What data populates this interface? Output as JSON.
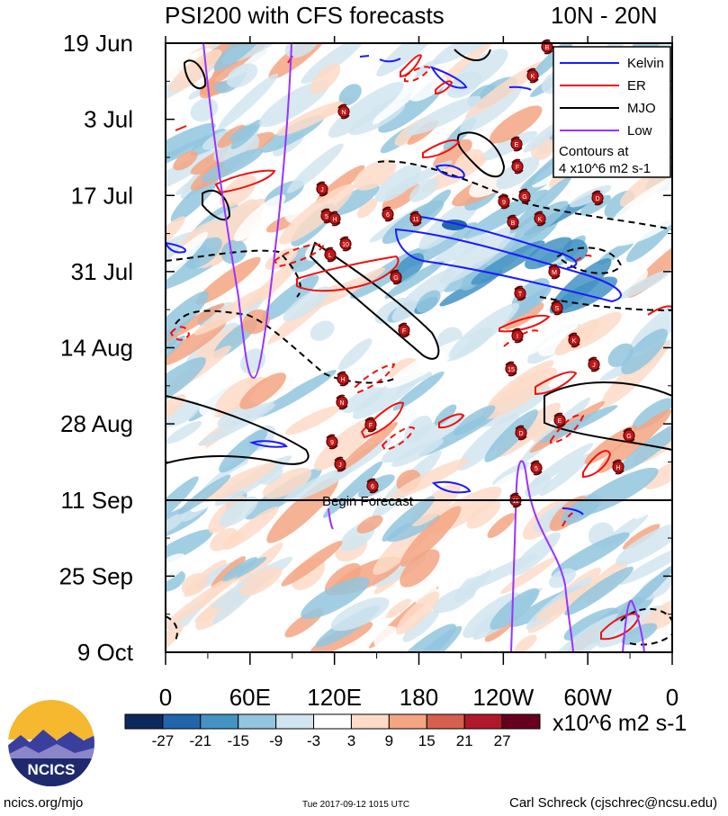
{
  "header": {
    "title": "PSI200 with CFS forecasts",
    "latitude_band": "10N - 20N"
  },
  "colorbar": {
    "ticks": [
      "-27",
      "-21",
      "-15",
      "-9",
      "-3",
      "3",
      "9",
      "15",
      "21",
      "27"
    ],
    "colors": [
      "#0d2a5c",
      "#2166ac",
      "#4393c3",
      "#92c5de",
      "#d1e5f0",
      "#ffffff",
      "#fddbc7",
      "#f4a582",
      "#d6604d",
      "#b2182b",
      "#67001f"
    ],
    "units": "x10^6 m2 s-1"
  },
  "legend": {
    "items": [
      {
        "label": "Kelvin",
        "color": "#1a1aff"
      },
      {
        "label": "ER",
        "color": "#ee1111"
      },
      {
        "label": "MJO",
        "color": "#000000"
      },
      {
        "label": "Low",
        "color": "#9933ff"
      }
    ],
    "note_line1": "Contours at",
    "note_line2": "4 x10^6 m2 s-1"
  },
  "annotations": {
    "begin_forecast": "Begin Forecast"
  },
  "logo": {
    "text": "NCICS"
  },
  "footer": {
    "url": "ncics.org/mjo",
    "timestamp": "Tue 2017-09-12 1015 UTC",
    "credit": "Carl Schreck (cjschrec@ncsu.edu)"
  },
  "chart_data": {
    "type": "heatmap",
    "title": "PSI200 with CFS forecasts",
    "subtitle": "10N - 20N",
    "x_axis": {
      "ticks": [
        "0",
        "60E",
        "120E",
        "180",
        "120W",
        "60W",
        "0"
      ],
      "tick_longitudes_east": [
        0,
        60,
        120,
        180,
        240,
        300,
        360
      ],
      "range": [
        0,
        360
      ]
    },
    "y_axis": {
      "ticks": [
        "19 Jun",
        "3 Jul",
        "17 Jul",
        "31 Jul",
        "14 Aug",
        "28 Aug",
        "11 Sep",
        "25 Sep",
        "9 Oct"
      ],
      "tick_dates": [
        "2017-06-19",
        "2017-07-03",
        "2017-07-17",
        "2017-07-31",
        "2017-08-14",
        "2017-08-28",
        "2017-09-11",
        "2017-09-25",
        "2017-10-09"
      ],
      "range": [
        "2017-06-19",
        "2017-10-09"
      ],
      "reversed": true
    },
    "forecast_start": "2017-09-11",
    "colorbar_levels": [
      -27,
      -21,
      -15,
      -9,
      -3,
      3,
      9,
      15,
      21,
      27
    ],
    "colorbar_units": "x10^6 m2 s-1",
    "contour_interval": 4,
    "contour_series": [
      "Kelvin",
      "ER",
      "MJO",
      "Low"
    ],
    "storm_markers": [
      "N",
      "E",
      "F",
      "D",
      "G",
      "9",
      "J",
      "5",
      "H",
      "6",
      "11",
      "B",
      "K",
      "10",
      "L",
      "M",
      "G",
      "T",
      "S",
      "F",
      "I",
      "K",
      "J",
      "15",
      "H"
    ],
    "legend_position": "top-right",
    "grid": false
  }
}
